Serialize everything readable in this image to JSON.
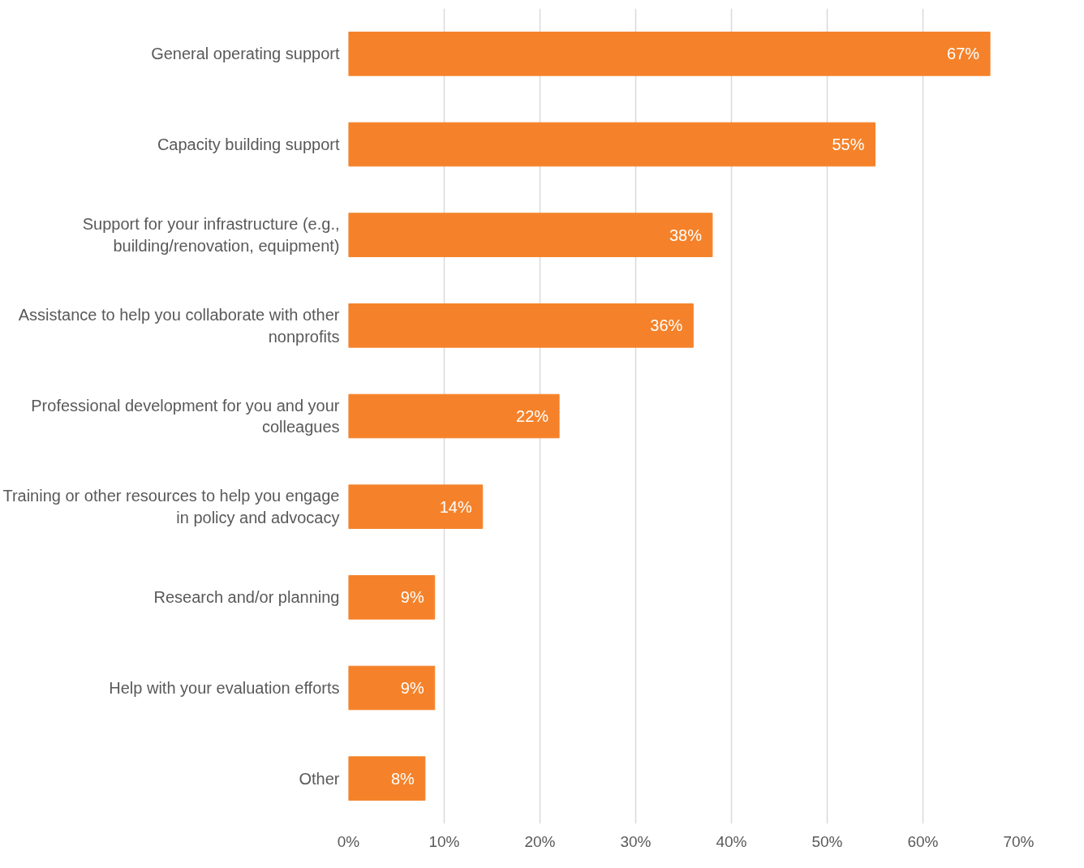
{
  "chart_data": {
    "type": "bar",
    "orientation": "horizontal",
    "categories": [
      "General operating support",
      "Capacity building support",
      "Support for your infrastructure (e.g., building/renovation, equipment)",
      "Assistance to help you collaborate with other nonprofits",
      "Professional development for you and your colleagues",
      "Training or other resources to help you engage in policy and advocacy",
      "Research and/or planning",
      "Help with your evaluation efforts",
      "Other"
    ],
    "values": [
      67,
      55,
      38,
      36,
      22,
      14,
      9,
      9,
      8
    ],
    "value_labels": [
      "67%",
      "55%",
      "38%",
      "36%",
      "22%",
      "14%",
      "9%",
      "9%",
      "8%"
    ],
    "color": "#f5822a",
    "xlim": [
      0,
      70
    ],
    "xticks": [
      {
        "value": 0,
        "label": "0%"
      },
      {
        "value": 10,
        "label": "10%"
      },
      {
        "value": 20,
        "label": "20%"
      },
      {
        "value": 30,
        "label": "30%"
      },
      {
        "value": 40,
        "label": "40%"
      },
      {
        "value": 50,
        "label": "50%"
      },
      {
        "value": 60,
        "label": "60%"
      },
      {
        "value": 70,
        "label": "70%"
      }
    ],
    "grid": "x"
  }
}
